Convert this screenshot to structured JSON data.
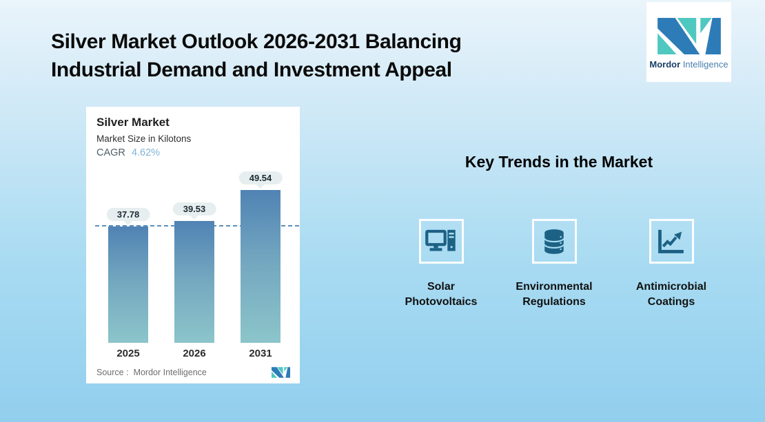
{
  "page": {
    "title_line1": "Silver Market Outlook 2026-2031 Balancing",
    "title_line2": "Industrial Demand and Investment Appeal"
  },
  "brand_logo": {
    "name_bold": "Mordor",
    "name_light": "Intelligence"
  },
  "chart_card": {
    "title": "Silver Market",
    "subtitle": "Market Size in Kilotons",
    "cagr_label": "CAGR",
    "cagr_value": "4.62%",
    "source_label": "Source :",
    "source_value": "Mordor Intelligence"
  },
  "chart_data": {
    "type": "bar",
    "title": "Silver Market",
    "subtitle": "Market Size in Kilotons",
    "cagr_percent": "4.62%",
    "categories": [
      "2025",
      "2026",
      "2031"
    ],
    "values": [
      37.78,
      39.53,
      49.54
    ],
    "unit": "Kilotons",
    "ylim": [
      0,
      55
    ],
    "reference_line_value": 37.78,
    "grid": "off",
    "legend": "none",
    "bar_color_top": "#5083b3",
    "bar_color_bottom": "#8cc5ca",
    "source": "Mordor Intelligence"
  },
  "key_trends": {
    "title": "Key Trends in the Market",
    "items": [
      {
        "icon": "computer-icon",
        "label": "Solar\nPhotovoltaics"
      },
      {
        "icon": "database-icon",
        "label": "Environmental\nRegulations"
      },
      {
        "icon": "chart-growth-icon",
        "label": "Antimicrobial\nCoatings"
      }
    ]
  },
  "colors": {
    "background_top": "#eaf4fb",
    "background_bottom": "#92cfee",
    "brand_blue": "#2d7cb8",
    "brand_teal": "#4fc8c0",
    "icon_color": "#1d6285",
    "cagr_value_color": "#80b4d6",
    "dashed_line": "#5b8fbc"
  }
}
